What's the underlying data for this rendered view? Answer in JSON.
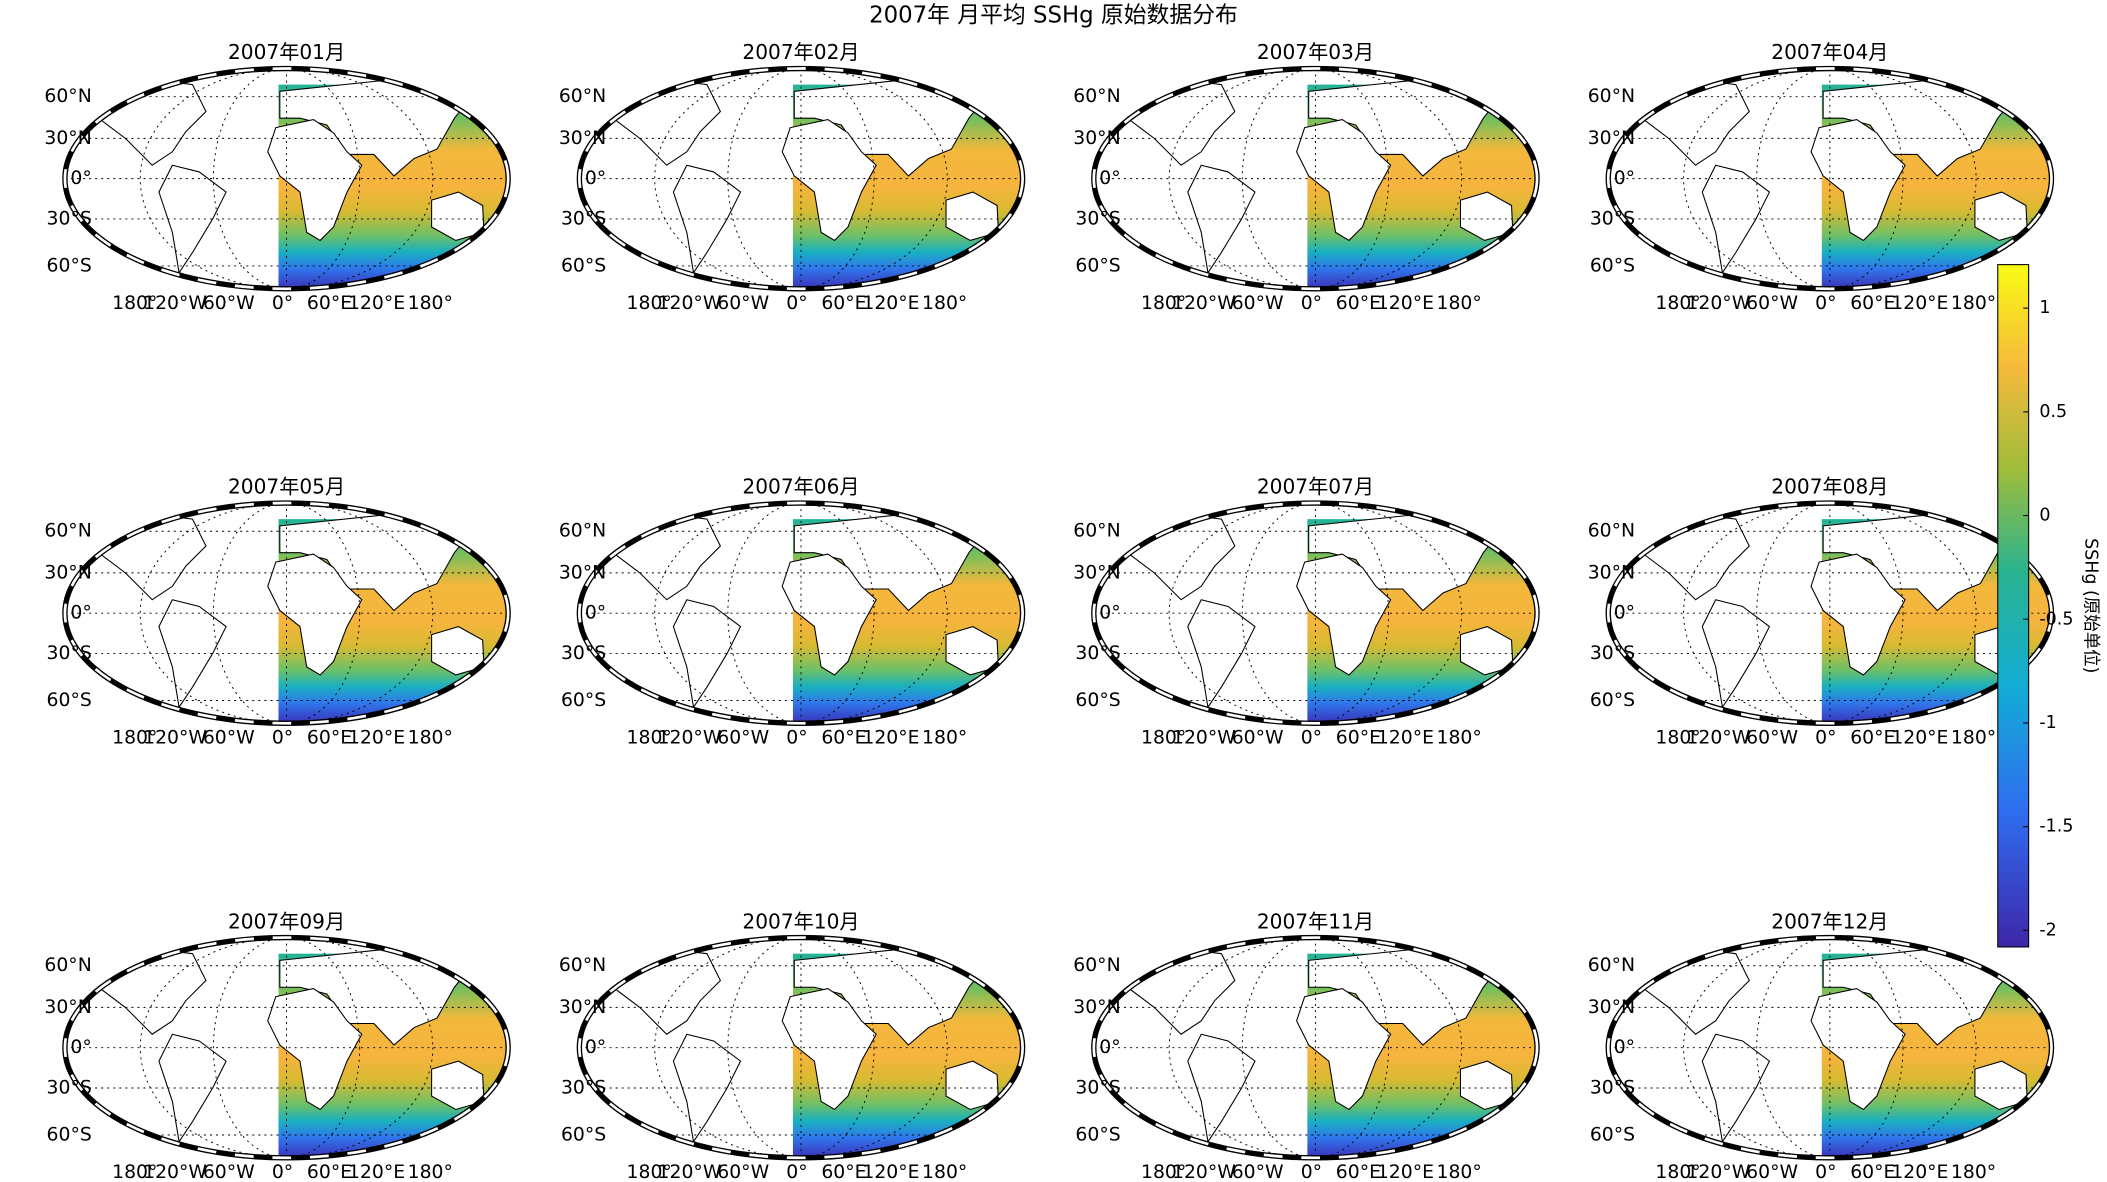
{
  "title": "2007年 月平均 SSHg 原始数据分布",
  "panels": [
    {
      "title": "2007年01月"
    },
    {
      "title": "2007年02月"
    },
    {
      "title": "2007年03月"
    },
    {
      "title": "2007年04月"
    },
    {
      "title": "2007年05月"
    },
    {
      "title": "2007年06月"
    },
    {
      "title": "2007年07月"
    },
    {
      "title": "2007年08月"
    },
    {
      "title": "2007年09月"
    },
    {
      "title": "2007年10月"
    },
    {
      "title": "2007年11月"
    },
    {
      "title": "2007年12月"
    }
  ],
  "lat_labels": [
    "60°N",
    "30°N",
    "0°",
    "30°S",
    "60°S"
  ],
  "lon_labels": [
    "180°",
    "120°W",
    "60°W",
    "0°",
    "60°E",
    "120°E",
    "180°"
  ],
  "colorbar": {
    "label": "SSHg (原始单位)",
    "lim": [
      -2.08,
      1.21
    ],
    "ticks": [
      1,
      0.5,
      0,
      -0.5,
      -1,
      -1.5,
      -2
    ]
  }
}
